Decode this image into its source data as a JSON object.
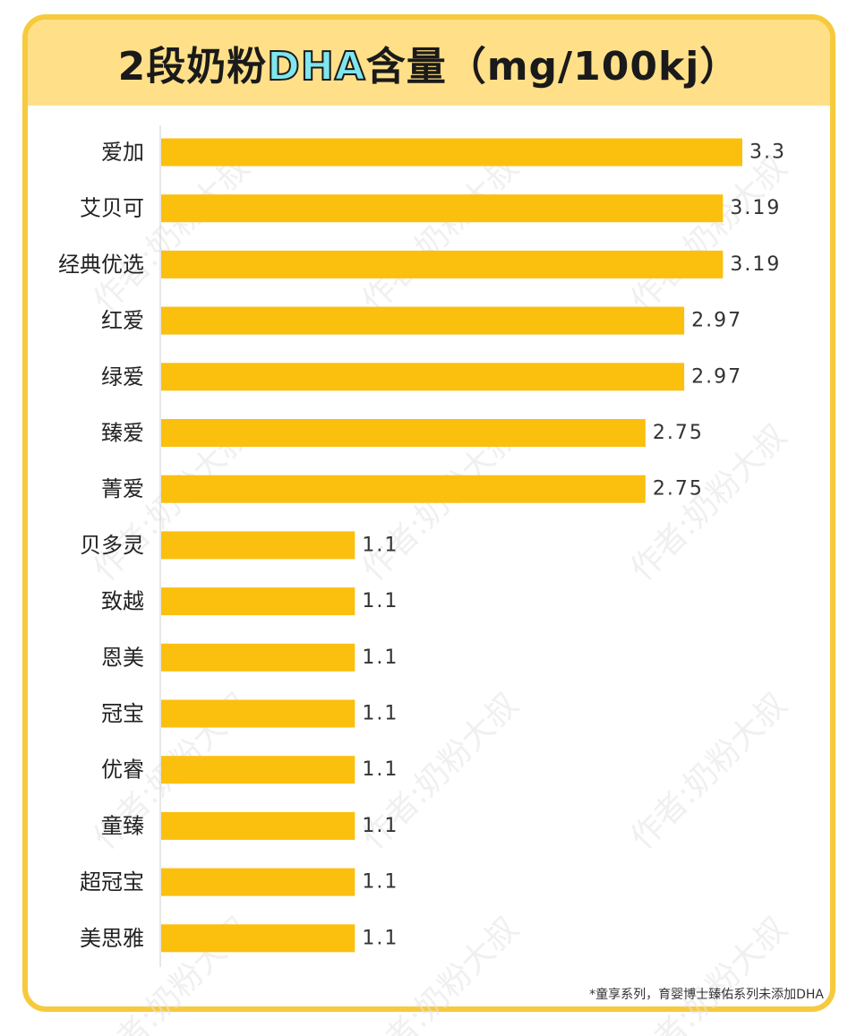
{
  "header": {
    "title_prefix": "2段奶粉",
    "title_highlight": "DHA",
    "title_suffix": "含量（mg/100kj）"
  },
  "footnote": "*童享系列，育婴博士臻佑系列未添加DHA",
  "watermark": "作者:奶粉大叔",
  "colors": {
    "bar": "#fbbf0e",
    "frame": "#f7c93c",
    "header_bg": "#ffe089",
    "highlight": "#7fe5ee"
  },
  "chart_data": {
    "type": "bar",
    "orientation": "horizontal",
    "title": "2段奶粉DHA含量（mg/100kj）",
    "categories": [
      "爱加",
      "艾贝可",
      "经典优选",
      "红爱",
      "绿爱",
      "臻爱",
      "菁爱",
      "贝多灵",
      "致越",
      "恩美",
      "冠宝",
      "优睿",
      "童臻",
      "超冠宝",
      "美思雅"
    ],
    "values": [
      3.3,
      3.19,
      3.19,
      2.97,
      2.97,
      2.75,
      2.75,
      1.1,
      1.1,
      1.1,
      1.1,
      1.1,
      1.1,
      1.1,
      1.1
    ],
    "value_labels": [
      "3.3",
      "3.19",
      "3.19",
      "2.97",
      "2.97",
      "2.75",
      "2.75",
      "1.1",
      "1.1",
      "1.1",
      "1.1",
      "1.1",
      "1.1",
      "1.1",
      "1.1"
    ],
    "xlim": [
      0,
      3.3
    ],
    "grid": false,
    "legend": "none"
  }
}
